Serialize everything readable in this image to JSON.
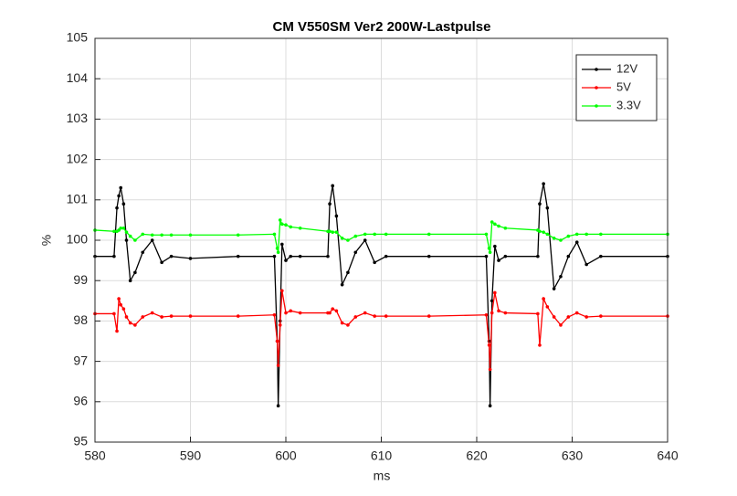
{
  "chart_data": {
    "type": "line",
    "title": "CM V550SM Ver2 200W-Lastpulse",
    "x_label": "ms",
    "y_label": "%",
    "x": [
      580,
      582,
      582.3,
      582.5,
      582.7,
      583,
      583.3,
      583.7,
      584.2,
      585,
      586,
      587,
      588,
      590,
      595,
      598.8,
      599.1,
      599.2,
      599.4,
      599.6,
      600,
      600.5,
      601.5,
      604.4,
      604.6,
      604.9,
      605.3,
      605.9,
      606.5,
      607.3,
      608.3,
      609.3,
      610.5,
      615,
      621.0,
      621.3,
      621.4,
      621.6,
      621.9,
      622.3,
      623,
      626.4,
      626.6,
      627.0,
      627.4,
      628.1,
      628.8,
      629.6,
      630.5,
      631.5,
      633,
      640
    ],
    "series": [
      {
        "name": "12V",
        "color": "#000000",
        "values": [
          99.6,
          99.6,
          100.8,
          101.1,
          101.3,
          100.9,
          100.0,
          99.0,
          99.2,
          99.7,
          100.0,
          99.45,
          99.6,
          99.55,
          99.6,
          99.6,
          97.5,
          95.9,
          98.0,
          99.9,
          99.5,
          99.6,
          99.6,
          99.6,
          100.9,
          101.35,
          100.6,
          98.9,
          99.2,
          99.7,
          100.0,
          99.45,
          99.6,
          99.6,
          99.6,
          97.5,
          95.9,
          98.5,
          99.85,
          99.5,
          99.6,
          99.6,
          100.9,
          101.4,
          100.8,
          98.8,
          99.1,
          99.6,
          99.95,
          99.4,
          99.6,
          99.6
        ]
      },
      {
        "name": "5V",
        "color": "#ff0000",
        "values": [
          98.18,
          98.18,
          97.75,
          98.55,
          98.4,
          98.3,
          98.1,
          97.95,
          97.9,
          98.1,
          98.2,
          98.1,
          98.12,
          98.12,
          98.12,
          98.15,
          97.5,
          96.9,
          97.9,
          98.75,
          98.2,
          98.25,
          98.2,
          98.2,
          98.2,
          98.3,
          98.25,
          97.95,
          97.9,
          98.1,
          98.2,
          98.12,
          98.12,
          98.12,
          98.15,
          97.4,
          96.8,
          98.2,
          98.7,
          98.25,
          98.2,
          98.18,
          97.4,
          98.55,
          98.35,
          98.1,
          97.9,
          98.1,
          98.2,
          98.1,
          98.12,
          98.12
        ]
      },
      {
        "name": "3.3V",
        "color": "#00ff00",
        "values": [
          100.25,
          100.22,
          100.22,
          100.25,
          100.3,
          100.3,
          100.2,
          100.1,
          100.0,
          100.15,
          100.13,
          100.13,
          100.13,
          100.13,
          100.13,
          100.15,
          99.8,
          99.7,
          100.5,
          100.4,
          100.38,
          100.33,
          100.3,
          100.22,
          100.22,
          100.2,
          100.2,
          100.05,
          100.0,
          100.1,
          100.15,
          100.15,
          100.15,
          100.15,
          100.15,
          99.8,
          99.7,
          100.45,
          100.4,
          100.35,
          100.3,
          100.25,
          100.22,
          100.2,
          100.15,
          100.05,
          100.0,
          100.1,
          100.15,
          100.15,
          100.15,
          100.15
        ]
      }
    ],
    "xlim": [
      580,
      640
    ],
    "xticks": [
      580,
      590,
      600,
      610,
      620,
      630,
      640
    ],
    "ylim": [
      95,
      105
    ],
    "yticks": [
      95,
      96,
      97,
      98,
      99,
      100,
      101,
      102,
      103,
      104,
      105
    ],
    "grid": true,
    "legend": "northeast"
  }
}
